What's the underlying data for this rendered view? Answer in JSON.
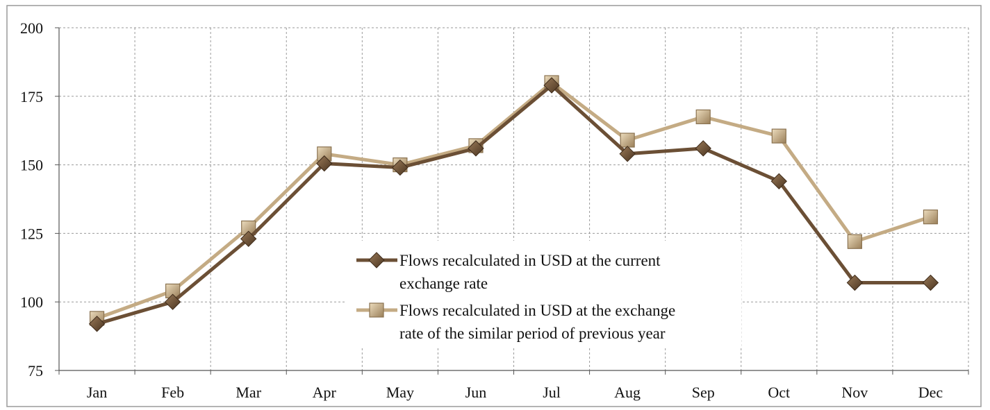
{
  "chart_data": {
    "type": "line",
    "title": "",
    "xlabel": "",
    "ylabel": "",
    "categories": [
      "Jan",
      "Feb",
      "Mar",
      "Apr",
      "May",
      "Jun",
      "Jul",
      "Aug",
      "Sep",
      "Oct",
      "Nov",
      "Dec"
    ],
    "ylim": [
      75,
      200
    ],
    "yticks": [
      75,
      100,
      125,
      150,
      175,
      200
    ],
    "grid": true,
    "legend_position": "center-right",
    "series": [
      {
        "name_lines": [
          "Flows recalculated in USD at the current",
          "exchange rate"
        ],
        "marker": "diamond",
        "color": "#6b4f35",
        "values": [
          92,
          100,
          123,
          150.5,
          149,
          156,
          179,
          154,
          156,
          144,
          107,
          107
        ]
      },
      {
        "name_lines": [
          "Flows recalculated in USD at the exchange",
          "rate of the similar period of previous year"
        ],
        "marker": "square",
        "color": "#c4ab84",
        "values": [
          94,
          104,
          127,
          154,
          150,
          157,
          180,
          159,
          167.5,
          160.5,
          122,
          131
        ]
      }
    ]
  }
}
